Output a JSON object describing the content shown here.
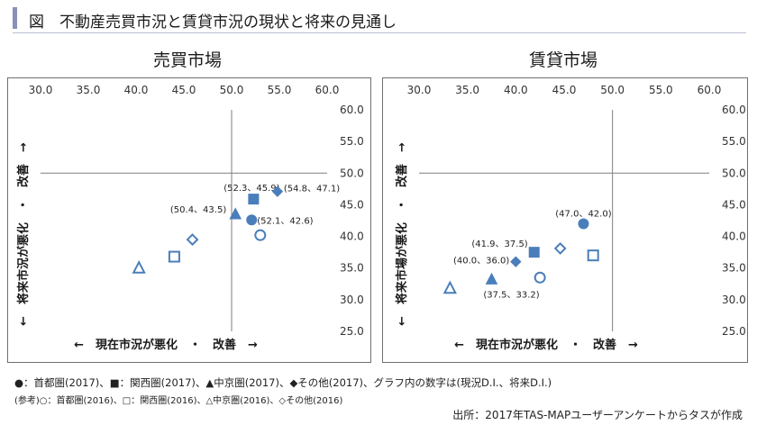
{
  "header": {
    "title": "図　不動産売買市況と賃貸市況の現状と将来の見通し"
  },
  "chart_data": [
    {
      "type": "scatter",
      "title": "売買市場",
      "xlabel": "←　現在市況が悪化　・　改善　→",
      "ylabel": "←　将来市況が悪化　・　改善　→",
      "xlim": [
        30.0,
        60.0
      ],
      "ylim": [
        25.0,
        60.0
      ],
      "x_ticks": [
        "30.0",
        "35.0",
        "40.0",
        "45.0",
        "50.0",
        "55.0",
        "60.0"
      ],
      "y_ticks": [
        "60.0",
        "55.0",
        "50.0",
        "45.0",
        "40.0",
        "35.0",
        "30.0",
        "25.0"
      ],
      "crosshair": [
        50,
        50
      ],
      "grid": false,
      "series": [
        {
          "name": "首都圏(2017)",
          "marker": "circle",
          "filled": true,
          "x": 52.1,
          "y": 42.6,
          "label": "(52.1、42.6)"
        },
        {
          "name": "関西圏(2017)",
          "marker": "square",
          "filled": true,
          "x": 52.3,
          "y": 45.9,
          "label": "(52.3、45.9)"
        },
        {
          "name": "中京圏(2017)",
          "marker": "triangle",
          "filled": true,
          "x": 50.4,
          "y": 43.5,
          "label": "(50.4、43.5)"
        },
        {
          "name": "その他(2017)",
          "marker": "diamond",
          "filled": true,
          "x": 54.8,
          "y": 47.1,
          "label": "(54.8、47.1)"
        },
        {
          "name": "首都圏(2016)",
          "marker": "circle",
          "filled": false,
          "x": 53.0,
          "y": 40.2
        },
        {
          "name": "関西圏(2016)",
          "marker": "square",
          "filled": false,
          "x": 44.0,
          "y": 36.8
        },
        {
          "name": "中京圏(2016)",
          "marker": "triangle",
          "filled": false,
          "x": 40.3,
          "y": 35.0
        },
        {
          "name": "その他(2016)",
          "marker": "diamond",
          "filled": false,
          "x": 45.9,
          "y": 39.5
        }
      ]
    },
    {
      "type": "scatter",
      "title": "賃貸市場",
      "xlabel": "←　現在市況が悪化　・　改善　→",
      "ylabel": "←　将来市場が悪化　・　改善　→",
      "xlim": [
        30.0,
        60.0
      ],
      "ylim": [
        25.0,
        60.0
      ],
      "x_ticks": [
        "30.0",
        "35.0",
        "40.0",
        "45.0",
        "50.0",
        "55.0",
        "60.0"
      ],
      "y_ticks": [
        "60.0",
        "55.0",
        "50.0",
        "45.0",
        "40.0",
        "35.0",
        "30.0",
        "25.0"
      ],
      "crosshair": [
        50,
        50
      ],
      "grid": false,
      "series": [
        {
          "name": "首都圏(2017)",
          "marker": "circle",
          "filled": true,
          "x": 47.0,
          "y": 42.0,
          "label": "(47.0、42.0)"
        },
        {
          "name": "関西圏(2017)",
          "marker": "square",
          "filled": true,
          "x": 41.9,
          "y": 37.5,
          "label": "(41.9、37.5)"
        },
        {
          "name": "中京圏(2017)",
          "marker": "triangle",
          "filled": true,
          "x": 37.5,
          "y": 33.2,
          "label": "(37.5、33.2)"
        },
        {
          "name": "その他(2017)",
          "marker": "diamond",
          "filled": true,
          "x": 40.0,
          "y": 36.0,
          "label": "(40.0、36.0)"
        },
        {
          "name": "首都圏(2016)",
          "marker": "circle",
          "filled": false,
          "x": 42.5,
          "y": 33.5
        },
        {
          "name": "関西圏(2016)",
          "marker": "square",
          "filled": false,
          "x": 48.0,
          "y": 37.0
        },
        {
          "name": "中京圏(2016)",
          "marker": "triangle",
          "filled": false,
          "x": 33.2,
          "y": 31.8
        },
        {
          "name": "その他(2016)",
          "marker": "diamond",
          "filled": false,
          "x": 44.6,
          "y": 38.1
        }
      ]
    }
  ],
  "legend": {
    "line1": "●：首都圏(2017)、■：関西圏(2017)、▲中京圏(2017)、◆その他(2017)、グラフ内の数字は(現況D.I.、将来D.I.)",
    "line2": "(参考)○：首都圏(2016)、□：関西圏(2016)、△中京圏(2016)、◇その他(2016)"
  },
  "source": "出所：2017年TAS-MAPユーザーアンケートからタスが作成",
  "colors": {
    "marker": "#4a7ebb",
    "axis": "#7f7f7f",
    "frame": "#6f6f6f",
    "title_accent": "#8791b8"
  }
}
